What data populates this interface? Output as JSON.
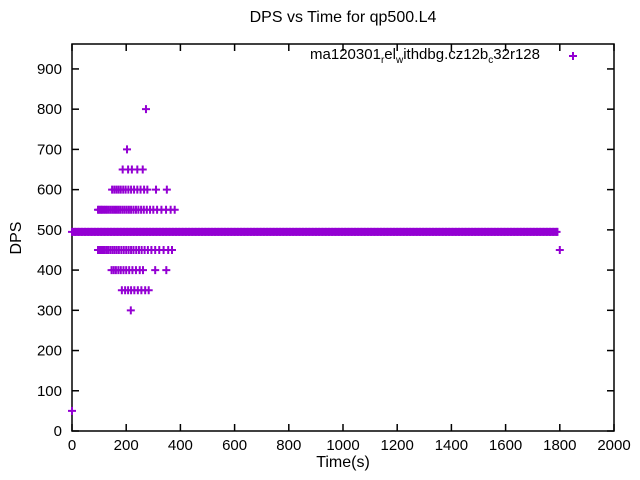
{
  "title": "DPS vs Time for qp500.L4",
  "x_axis": {
    "label": "Time(s)"
  },
  "y_axis": {
    "label": "DPS"
  },
  "legend": {
    "label_plain": "ma120301_rel_withdbg.cz12b_c32r128",
    "marker_glyph": "+",
    "segments": [
      {
        "text": "ma120301",
        "subscript": false
      },
      {
        "text": "r",
        "subscript": true
      },
      {
        "text": "el",
        "subscript": false
      },
      {
        "text": "w",
        "subscript": true
      },
      {
        "text": "ithdbg.cz12b",
        "subscript": false
      },
      {
        "text": "c",
        "subscript": true
      },
      {
        "text": "32r128",
        "subscript": false
      }
    ]
  },
  "style": {
    "marker_color": "#9400D3",
    "axis_color": "#000000",
    "background": "#ffffff",
    "text_color": "#000000"
  },
  "chart_data": {
    "type": "scatter",
    "title": "DPS vs Time for qp500.L4",
    "xlabel": "Time(s)",
    "ylabel": "DPS",
    "xlim": [
      0,
      2000
    ],
    "ylim": [
      0,
      962
    ],
    "x_ticks": [
      0,
      200,
      400,
      600,
      800,
      1000,
      1200,
      1400,
      1600,
      1800,
      2000
    ],
    "y_ticks": [
      0,
      100,
      200,
      300,
      400,
      500,
      600,
      700,
      800,
      900
    ],
    "grid": false,
    "tick_style": "inward-mirrored",
    "legend_position": "top-right-inside",
    "marker": "plus",
    "marker_color": "#9400D3",
    "series": [
      {
        "name": "ma120301_rel_withdbg.cz12b_c32r128",
        "band": {
          "dps": 495,
          "time_start": 0,
          "time_end": 1795,
          "note": "dense continuous band of overlapping points"
        },
        "rows": [
          {
            "dps": 50,
            "times": [
              0
            ]
          },
          {
            "dps": 300,
            "times": [
              217
            ]
          },
          {
            "dps": 350,
            "times": [
              184,
              196,
              207,
              218,
              230,
              243,
              256,
              270,
              283
            ]
          },
          {
            "dps": 400,
            "times": [
              146,
              154,
              162,
              171,
              180,
              190,
              200,
              211,
              223,
              236,
              250,
              262,
              307,
              348
            ]
          },
          {
            "dps": 450,
            "times": [
              96,
              101,
              107,
              113,
              119,
              126,
              133,
              141,
              149,
              157,
              165,
              173,
              182,
              191,
              200,
              209,
              218,
              227,
              237,
              247,
              257,
              268,
              280,
              293,
              307,
              322,
              338,
              355,
              369,
              1800
            ]
          },
          {
            "dps": 550,
            "times": [
              96,
              101,
              106,
              111,
              117,
              123,
              129,
              136,
              143,
              150,
              157,
              164,
              171,
              178,
              186,
              194,
              202,
              210,
              218,
              227,
              236,
              245,
              255,
              265,
              276,
              288,
              300,
              314,
              330,
              347,
              364,
              379
            ]
          },
          {
            "dps": 600,
            "times": [
              148,
              156,
              164,
              172,
              180,
              189,
              198,
              208,
              218,
              229,
              241,
              253,
              266,
              278,
              310,
              350
            ]
          },
          {
            "dps": 650,
            "times": [
              187,
              207,
              221,
              241,
              261
            ]
          },
          {
            "dps": 700,
            "times": [
              203
            ]
          },
          {
            "dps": 800,
            "times": [
              273
            ]
          }
        ]
      }
    ]
  }
}
